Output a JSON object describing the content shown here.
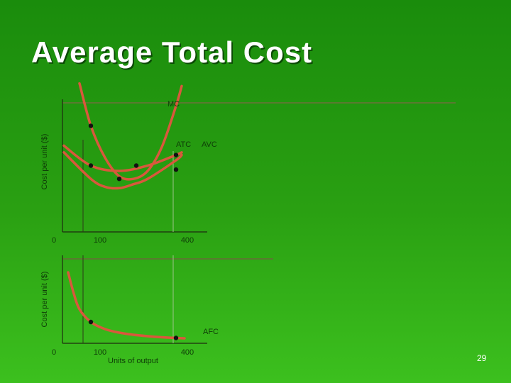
{
  "slide": {
    "title": "Average Total Cost",
    "number": "29"
  },
  "colors": {
    "curve": "#d9583c",
    "dot": "#111111",
    "axis": "#1d2a10",
    "text": "#0f3d08",
    "title": "#ffffff"
  },
  "chart_data": [
    {
      "type": "line",
      "ylabel": "Cost per unit ($)",
      "xlabel": "",
      "x_ticks": [
        "0",
        "100",
        "400"
      ],
      "xlim": [
        0,
        500
      ],
      "ylim": [
        0,
        100
      ],
      "series": [
        {
          "name": "MC",
          "x": [
            60,
            100,
            150,
            200,
            250,
            300,
            350,
            400,
            420
          ],
          "y": [
            112,
            80,
            56,
            42,
            40,
            46,
            64,
            95,
            110
          ]
        },
        {
          "name": "ATC",
          "x": [
            5,
            100,
            200,
            300,
            400,
            420
          ],
          "y": [
            65,
            50,
            46,
            50,
            58,
            60
          ]
        },
        {
          "name": "AVC",
          "x": [
            5,
            100,
            150,
            200,
            250,
            300,
            400,
            420
          ],
          "y": [
            60,
            40,
            34,
            33,
            36,
            40,
            54,
            58
          ]
        }
      ],
      "points": [
        {
          "x": 100,
          "y": 80
        },
        {
          "x": 100,
          "y": 50
        },
        {
          "x": 200,
          "y": 40
        },
        {
          "x": 260,
          "y": 50
        },
        {
          "x": 400,
          "y": 58
        },
        {
          "x": 400,
          "y": 47
        }
      ],
      "labels": [
        "MC",
        "ATC",
        "AVC"
      ]
    },
    {
      "type": "line",
      "ylabel": "Cost per unit ($)",
      "xlabel": "Units of output",
      "x_ticks": [
        "0",
        "100",
        "400"
      ],
      "xlim": [
        0,
        500
      ],
      "ylim": [
        0,
        100
      ],
      "series": [
        {
          "name": "AFC",
          "x": [
            20,
            40,
            60,
            100,
            150,
            200,
            250,
            300,
            350,
            400,
            430
          ],
          "y": [
            100,
            70,
            48,
            30,
            20,
            15,
            12,
            10,
            8.5,
            7.5,
            7
          ]
        }
      ],
      "points": [
        {
          "x": 100,
          "y": 30
        },
        {
          "x": 400,
          "y": 7.5
        }
      ],
      "labels": [
        "AFC"
      ]
    }
  ]
}
